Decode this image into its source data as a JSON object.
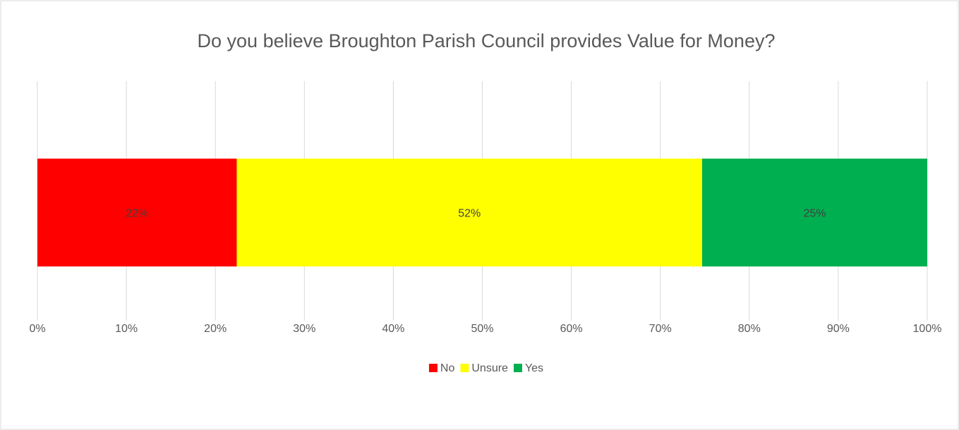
{
  "chart_data": {
    "type": "stacked-hbar",
    "title": "Do you believe Broughton Parish Council provides Value for Money?",
    "series": [
      {
        "name": "No",
        "color": "#ff0000",
        "values": [
          22.4
        ],
        "value_labels": [
          "22%"
        ]
      },
      {
        "name": "Unsure",
        "color": "#ffff00",
        "values": [
          52.3
        ],
        "value_labels": [
          "52%"
        ]
      },
      {
        "name": "Yes",
        "color": "#00b050",
        "values": [
          25.3
        ],
        "value_labels": [
          "25%"
        ]
      }
    ],
    "xlim": [
      0,
      100
    ],
    "xticks": [
      {
        "value": 0,
        "label": "0%"
      },
      {
        "value": 10,
        "label": "10%"
      },
      {
        "value": 20,
        "label": "20%"
      },
      {
        "value": 30,
        "label": "30%"
      },
      {
        "value": 40,
        "label": "40%"
      },
      {
        "value": 50,
        "label": "50%"
      },
      {
        "value": 60,
        "label": "60%"
      },
      {
        "value": 70,
        "label": "70%"
      },
      {
        "value": 80,
        "label": "80%"
      },
      {
        "value": 90,
        "label": "90%"
      },
      {
        "value": 100,
        "label": "100%"
      }
    ],
    "grid": true,
    "legend": "bottom"
  }
}
